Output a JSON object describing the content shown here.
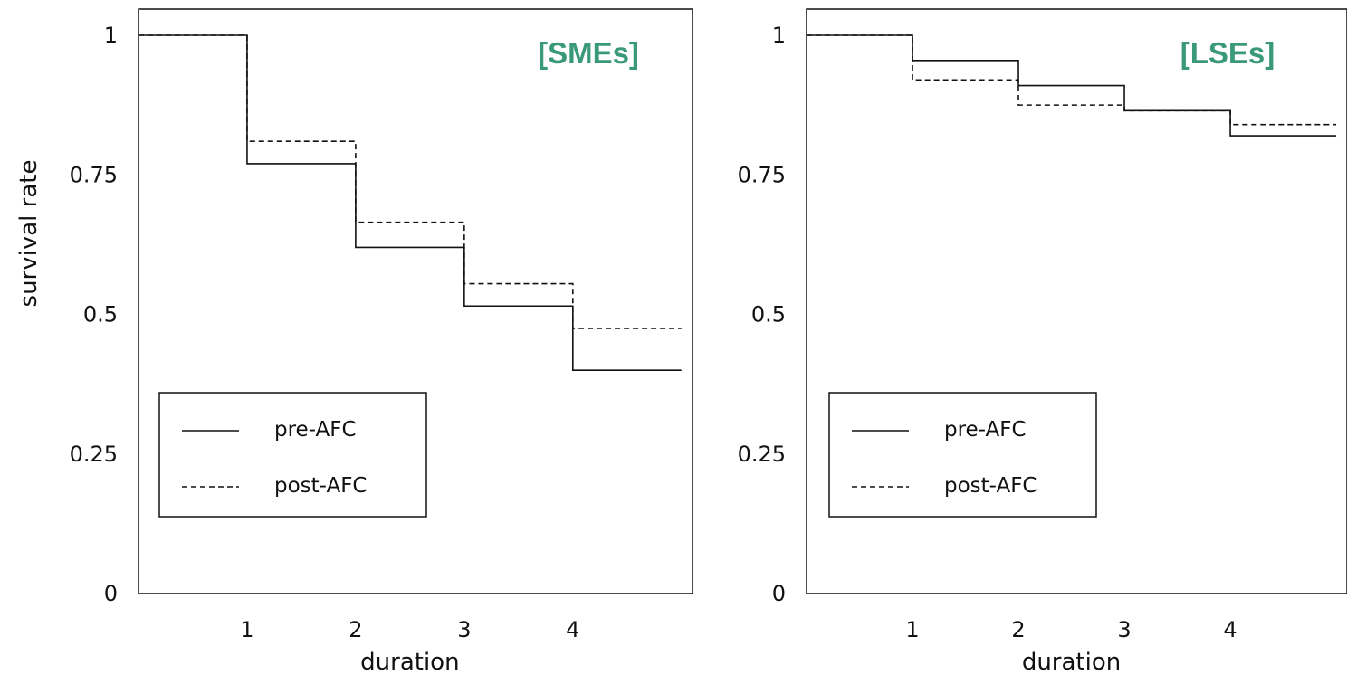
{
  "colors": {
    "title": "#3a9a78",
    "line": "#111111"
  },
  "chart_data": [
    {
      "type": "line",
      "step": true,
      "title": "[SMEs]",
      "xlabel": "duration",
      "ylabel": "survival rate",
      "xlim": [
        0,
        5
      ],
      "ylim": [
        0,
        1
      ],
      "xticks": [
        1,
        2,
        3,
        4
      ],
      "yticks": [
        0,
        0.25,
        0.5,
        0.75,
        1
      ],
      "ytick_labels": [
        "0",
        "0.25",
        "0.5",
        "0.75",
        "1"
      ],
      "grid": false,
      "legend_position": "bottom-left",
      "series": [
        {
          "name": "pre-AFC",
          "style": "solid",
          "x": [
            0,
            1,
            2,
            3,
            4,
            5
          ],
          "y": [
            1,
            0.77,
            0.62,
            0.515,
            0.4,
            0.4
          ]
        },
        {
          "name": "post-AFC",
          "style": "dashed",
          "x": [
            0,
            1,
            2,
            3,
            4,
            5
          ],
          "y": [
            1,
            0.81,
            0.665,
            0.555,
            0.475,
            0.475
          ]
        }
      ]
    },
    {
      "type": "line",
      "step": true,
      "title": "[LSEs]",
      "xlabel": "duration",
      "ylabel": "",
      "xlim": [
        0,
        5
      ],
      "ylim": [
        0,
        1
      ],
      "xticks": [
        1,
        2,
        3,
        4
      ],
      "yticks": [
        0,
        0.25,
        0.5,
        0.75,
        1
      ],
      "ytick_labels": [
        "0",
        "0.25",
        "0.5",
        "0.75",
        "1"
      ],
      "grid": false,
      "legend_position": "bottom-left",
      "series": [
        {
          "name": "pre-AFC",
          "style": "solid",
          "x": [
            0,
            1,
            2,
            3,
            4,
            5
          ],
          "y": [
            1,
            0.955,
            0.91,
            0.865,
            0.82,
            0.82
          ]
        },
        {
          "name": "post-AFC",
          "style": "dashed",
          "x": [
            0,
            1,
            2,
            3,
            4,
            5
          ],
          "y": [
            1,
            0.92,
            0.875,
            0.865,
            0.84,
            0.84
          ]
        }
      ]
    }
  ]
}
